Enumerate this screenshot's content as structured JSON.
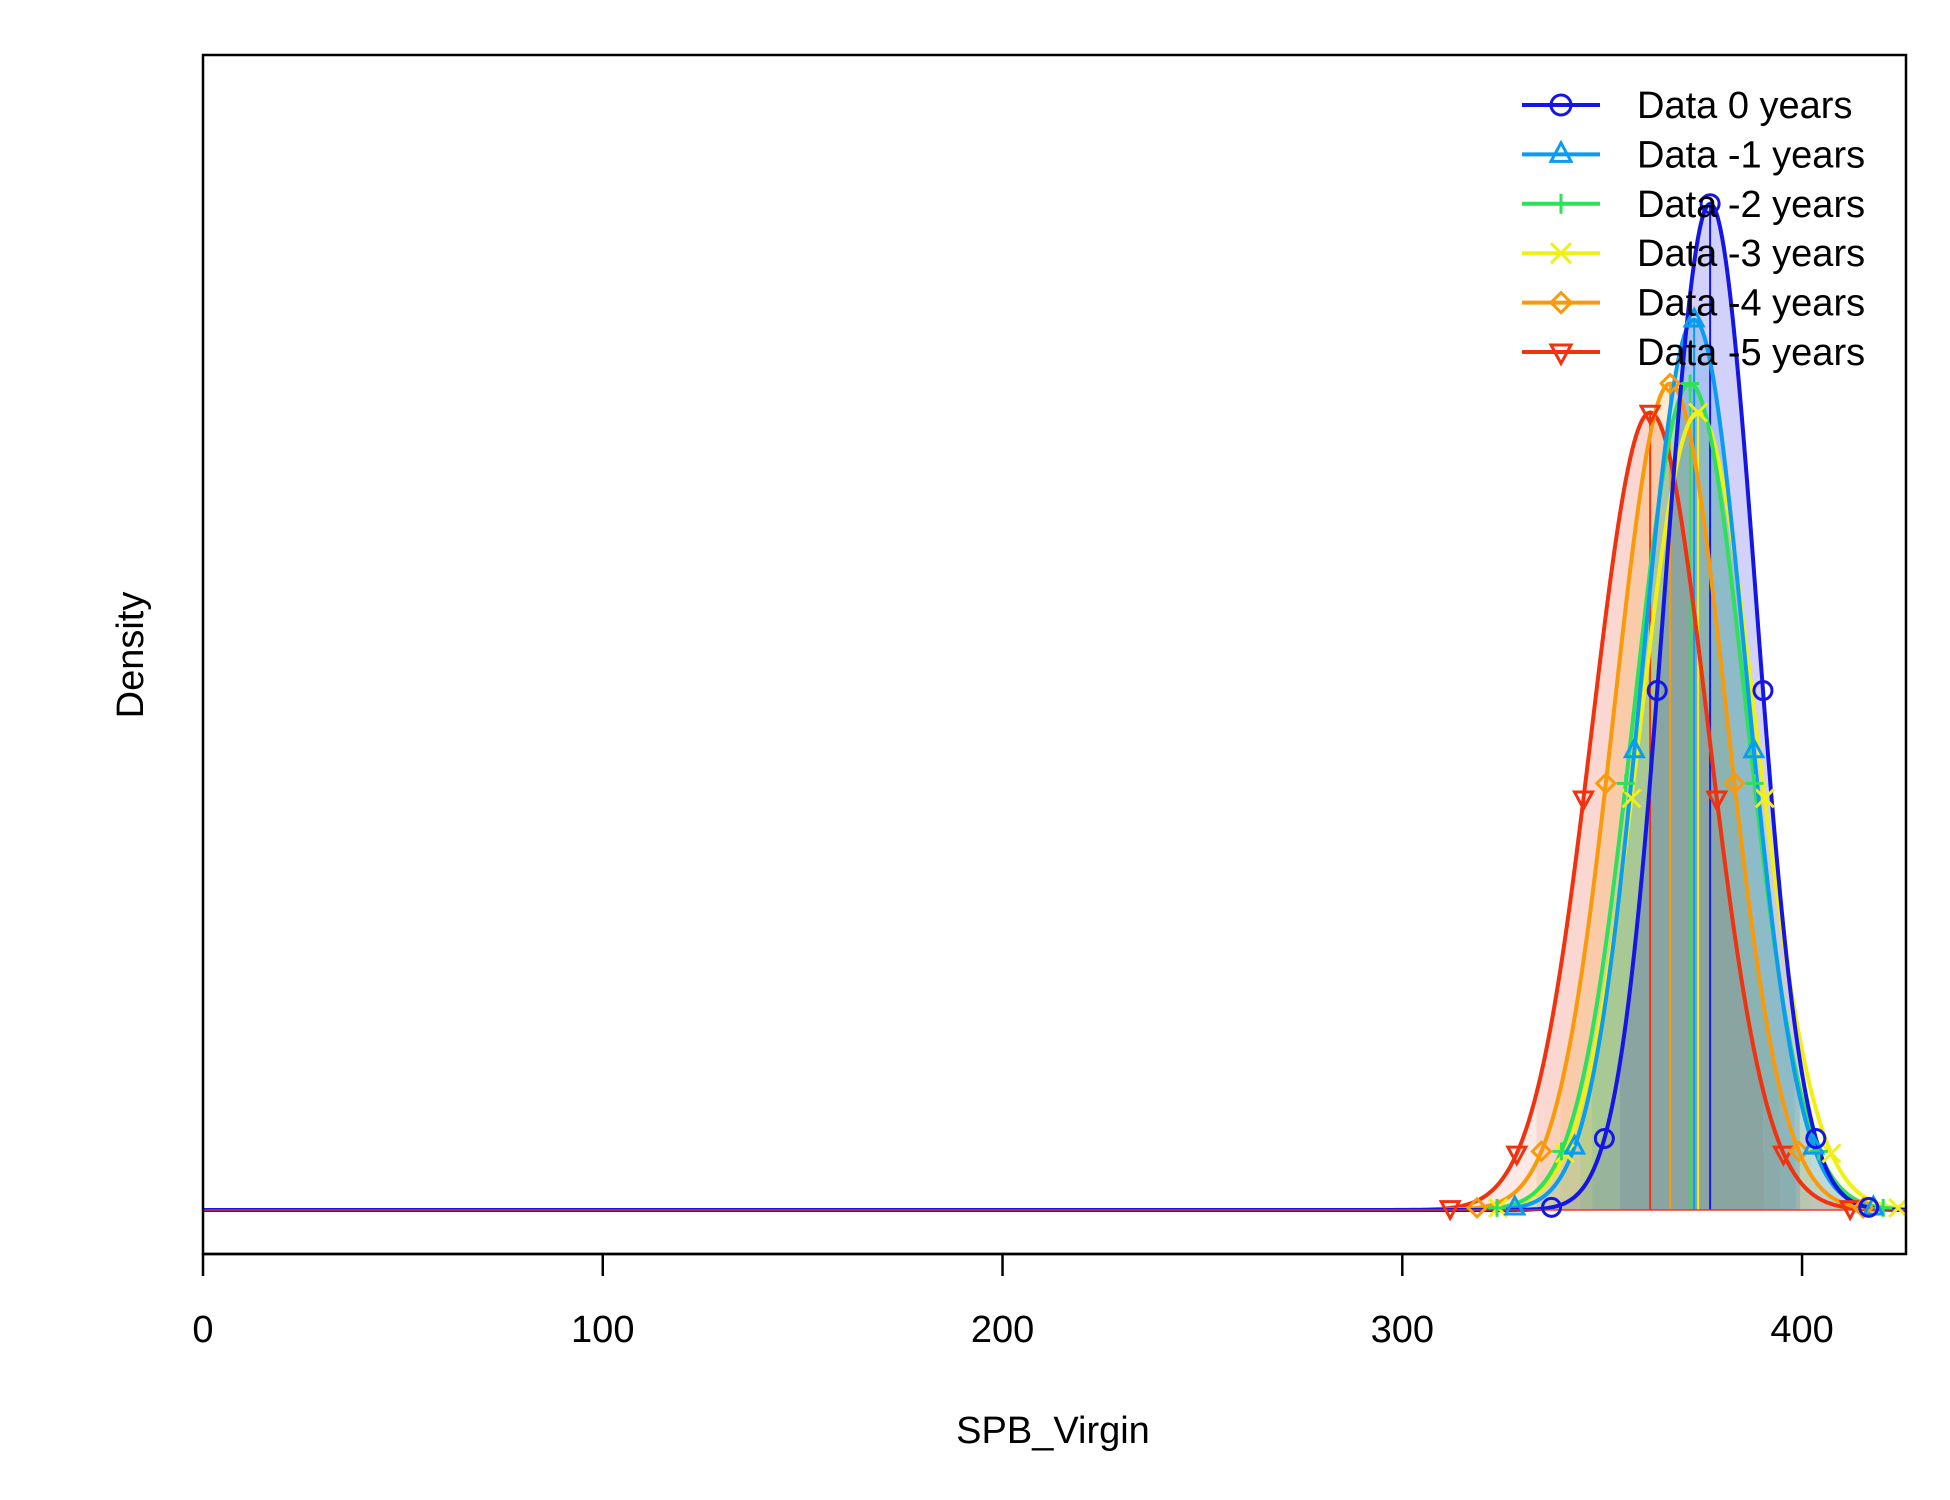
{
  "chart_data": {
    "type": "area",
    "title": "",
    "xlabel": "SPB_Virgin",
    "ylabel": "Density",
    "xlim": [
      0,
      426
    ],
    "xticks": [
      "0",
      "100",
      "200",
      "300",
      "400"
    ],
    "x_tick_values": [
      0,
      100,
      200,
      300,
      400
    ],
    "y_ticks_shown": false,
    "legend_position": "top-right",
    "series": [
      {
        "name": "Data 0 years",
        "color": "#1515e6",
        "marker": "circle",
        "mean": 377,
        "sd": 11.5,
        "peak_density": 0.0347
      },
      {
        "name": "Data -1 years",
        "color": "#0a9cf0",
        "marker": "triangle-up",
        "mean": 373,
        "sd": 13.0,
        "peak_density": 0.0307
      },
      {
        "name": "Data -2 years",
        "color": "#2ee05a",
        "marker": "plus",
        "mean": 372,
        "sd": 14.0,
        "peak_density": 0.0285
      },
      {
        "name": "Data -3 years",
        "color": "#f0f015",
        "marker": "cross",
        "mean": 374,
        "sd": 14.5,
        "peak_density": 0.0275
      },
      {
        "name": "Data -4 years",
        "color": "#fa9a0a",
        "marker": "diamond",
        "mean": 367,
        "sd": 14.0,
        "peak_density": 0.0285
      },
      {
        "name": "Data -5 years",
        "color": "#f0320f",
        "marker": "triangle-down",
        "mean": 362,
        "sd": 14.5,
        "peak_density": 0.0275
      }
    ]
  }
}
